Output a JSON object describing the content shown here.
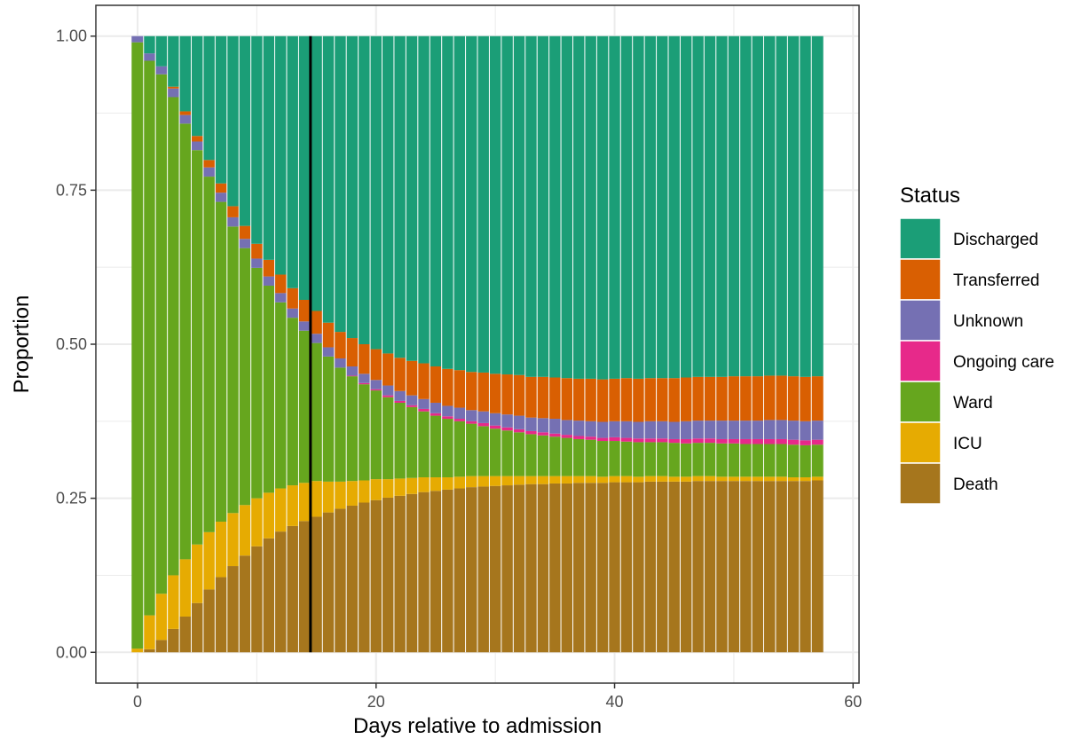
{
  "chart_data": {
    "type": "bar",
    "stacked": true,
    "title": "",
    "xlabel": "Days relative to admission",
    "ylabel": "Proportion",
    "xlim": [
      -3.5,
      60.5
    ],
    "ylim": [
      -0.05,
      1.05
    ],
    "x_ticks": [
      0,
      20,
      40,
      60
    ],
    "y_ticks": [
      "0.00",
      "0.25",
      "0.50",
      "0.75",
      "1.00"
    ],
    "y_tick_values": [
      0,
      0.25,
      0.5,
      0.75,
      1
    ],
    "grid": true,
    "vertical_marker_x": 14.5,
    "legend": {
      "title": "Status",
      "placement": "right"
    },
    "days": [
      0,
      1,
      2,
      3,
      4,
      5,
      6,
      7,
      8,
      9,
      10,
      11,
      12,
      13,
      14,
      15,
      16,
      17,
      18,
      19,
      20,
      21,
      22,
      23,
      24,
      25,
      26,
      27,
      28,
      29,
      30,
      31,
      32,
      33,
      34,
      35,
      36,
      37,
      38,
      39,
      40,
      41,
      42,
      43,
      44,
      45,
      46,
      47,
      48,
      49,
      50,
      51,
      52,
      53,
      54,
      55,
      56,
      57
    ],
    "series": [
      {
        "name": "Death",
        "color": "#A6761D",
        "values": [
          0.0,
          0.005,
          0.02,
          0.038,
          0.058,
          0.08,
          0.102,
          0.122,
          0.14,
          0.157,
          0.172,
          0.185,
          0.196,
          0.205,
          0.213,
          0.22,
          0.227,
          0.233,
          0.238,
          0.243,
          0.247,
          0.251,
          0.254,
          0.257,
          0.26,
          0.262,
          0.264,
          0.266,
          0.268,
          0.269,
          0.27,
          0.271,
          0.272,
          0.273,
          0.273,
          0.274,
          0.274,
          0.275,
          0.275,
          0.275,
          0.276,
          0.276,
          0.276,
          0.277,
          0.277,
          0.277,
          0.277,
          0.278,
          0.278,
          0.278,
          0.278,
          0.278,
          0.278,
          0.278,
          0.278,
          0.278,
          0.278,
          0.279
        ]
      },
      {
        "name": "ICU",
        "color": "#E6AB02",
        "values": [
          0.006,
          0.055,
          0.075,
          0.087,
          0.093,
          0.095,
          0.093,
          0.09,
          0.086,
          0.082,
          0.078,
          0.074,
          0.07,
          0.066,
          0.062,
          0.058,
          0.05,
          0.044,
          0.04,
          0.036,
          0.034,
          0.03,
          0.028,
          0.026,
          0.024,
          0.022,
          0.02,
          0.019,
          0.018,
          0.017,
          0.016,
          0.015,
          0.014,
          0.013,
          0.013,
          0.012,
          0.012,
          0.011,
          0.011,
          0.01,
          0.01,
          0.01,
          0.009,
          0.009,
          0.009,
          0.008,
          0.008,
          0.008,
          0.008,
          0.007,
          0.007,
          0.007,
          0.007,
          0.007,
          0.007,
          0.006,
          0.006,
          0.006
        ]
      },
      {
        "name": "Ward",
        "color": "#66A61E",
        "values": [
          0.984,
          0.9,
          0.843,
          0.776,
          0.707,
          0.64,
          0.577,
          0.519,
          0.465,
          0.417,
          0.374,
          0.336,
          0.302,
          0.272,
          0.247,
          0.224,
          0.203,
          0.185,
          0.17,
          0.156,
          0.144,
          0.133,
          0.123,
          0.115,
          0.107,
          0.1,
          0.095,
          0.09,
          0.085,
          0.081,
          0.077,
          0.074,
          0.071,
          0.068,
          0.066,
          0.064,
          0.062,
          0.06,
          0.059,
          0.058,
          0.057,
          0.056,
          0.056,
          0.055,
          0.055,
          0.055,
          0.054,
          0.054,
          0.054,
          0.054,
          0.054,
          0.053,
          0.053,
          0.053,
          0.053,
          0.053,
          0.052,
          0.052
        ]
      },
      {
        "name": "Ongoing care",
        "color": "#E7298A",
        "values": [
          0,
          0,
          0,
          0,
          0,
          0,
          0,
          0,
          0,
          0,
          0,
          0,
          0,
          0,
          0,
          0,
          0,
          0,
          0.001,
          0.002,
          0.002,
          0.003,
          0.003,
          0.003,
          0.004,
          0.004,
          0.004,
          0.004,
          0.004,
          0.005,
          0.005,
          0.005,
          0.005,
          0.005,
          0.005,
          0.005,
          0.005,
          0.005,
          0.005,
          0.005,
          0.006,
          0.006,
          0.006,
          0.006,
          0.006,
          0.006,
          0.007,
          0.007,
          0.007,
          0.007,
          0.007,
          0.008,
          0.008,
          0.008,
          0.008,
          0.008,
          0.008,
          0.008
        ]
      },
      {
        "name": "Unknown",
        "color": "#7570B3",
        "values": [
          0.01,
          0.012,
          0.013,
          0.014,
          0.014,
          0.014,
          0.015,
          0.015,
          0.015,
          0.015,
          0.015,
          0.015,
          0.015,
          0.015,
          0.015,
          0.015,
          0.015,
          0.015,
          0.015,
          0.015,
          0.015,
          0.016,
          0.016,
          0.016,
          0.016,
          0.017,
          0.017,
          0.018,
          0.018,
          0.019,
          0.02,
          0.021,
          0.022,
          0.022,
          0.023,
          0.024,
          0.024,
          0.025,
          0.025,
          0.026,
          0.026,
          0.027,
          0.027,
          0.028,
          0.028,
          0.028,
          0.029,
          0.029,
          0.029,
          0.03,
          0.03,
          0.03,
          0.03,
          0.031,
          0.031,
          0.031,
          0.031,
          0.031
        ]
      },
      {
        "name": "Transferred",
        "color": "#D95F02",
        "values": [
          0,
          0,
          0,
          0.003,
          0.006,
          0.009,
          0.012,
          0.015,
          0.018,
          0.021,
          0.024,
          0.027,
          0.03,
          0.033,
          0.035,
          0.037,
          0.04,
          0.043,
          0.046,
          0.048,
          0.05,
          0.052,
          0.054,
          0.056,
          0.058,
          0.059,
          0.06,
          0.061,
          0.062,
          0.063,
          0.064,
          0.065,
          0.066,
          0.066,
          0.067,
          0.067,
          0.068,
          0.068,
          0.069,
          0.069,
          0.069,
          0.07,
          0.07,
          0.07,
          0.07,
          0.071,
          0.071,
          0.071,
          0.071,
          0.071,
          0.072,
          0.072,
          0.072,
          0.072,
          0.072,
          0.072,
          0.072,
          0.072
        ]
      },
      {
        "name": "Discharged",
        "color": "#1B9E77",
        "values": [
          0,
          0.028,
          0.049,
          0.082,
          0.122,
          0.162,
          0.201,
          0.239,
          0.276,
          0.308,
          0.337,
          0.363,
          0.387,
          0.409,
          0.428,
          0.446,
          0.465,
          0.48,
          0.49,
          0.5,
          0.508,
          0.515,
          0.522,
          0.527,
          0.531,
          0.536,
          0.54,
          0.542,
          0.545,
          0.546,
          0.548,
          0.549,
          0.55,
          0.553,
          0.553,
          0.554,
          0.555,
          0.556,
          0.556,
          0.557,
          0.556,
          0.555,
          0.556,
          0.555,
          0.555,
          0.555,
          0.554,
          0.553,
          0.553,
          0.553,
          0.552,
          0.552,
          0.552,
          0.551,
          0.551,
          0.552,
          0.553,
          0.552
        ]
      }
    ],
    "legend_order": [
      "Discharged",
      "Transferred",
      "Unknown",
      "Ongoing care",
      "Ward",
      "ICU",
      "Death"
    ]
  }
}
